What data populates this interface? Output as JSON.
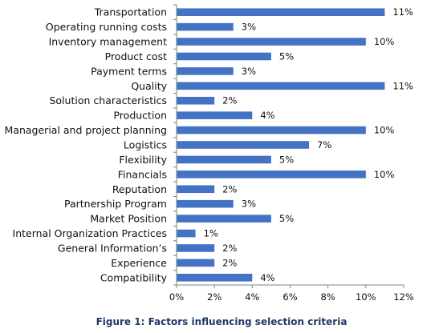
{
  "chart_data": {
    "type": "bar",
    "orientation": "horizontal",
    "categories": [
      "Transportation",
      "Operating running costs",
      "Inventory management",
      "Product cost",
      "Payment terms",
      "Quality",
      "Solution characteristics",
      "Production",
      "Managerial and project planning",
      "Logistics",
      "Flexibility",
      "Financials",
      "Reputation",
      "Partnership Program",
      "Market Position",
      "Internal Organization Practices",
      "General Information’s",
      "Experience",
      "Compatibility"
    ],
    "values": [
      11,
      3,
      10,
      5,
      3,
      11,
      2,
      4,
      10,
      7,
      5,
      10,
      2,
      3,
      5,
      1,
      2,
      2,
      4
    ],
    "value_labels": [
      "11%",
      "3%",
      "10%",
      "5%",
      "3%",
      "11%",
      "2%",
      "4%",
      "10%",
      "7%",
      "5%",
      "10%",
      "2%",
      "3%",
      "5%",
      "1%",
      "2%",
      "2%",
      "4%"
    ],
    "xlim": [
      0,
      12
    ],
    "x_ticks": [
      0,
      2,
      4,
      6,
      8,
      10,
      12
    ],
    "x_tick_labels": [
      "0%",
      "2%",
      "4%",
      "6%",
      "8%",
      "10%",
      "12%"
    ],
    "grid": false,
    "legend": "none",
    "bar_color": "#4472C4"
  },
  "caption": "Figure 1: Factors influencing selection criteria"
}
